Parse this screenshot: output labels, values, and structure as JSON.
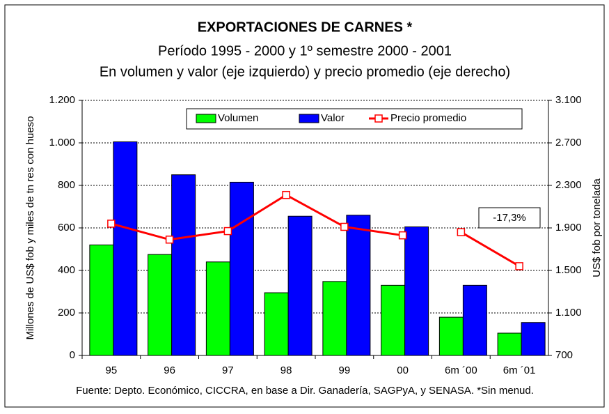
{
  "chart_data": {
    "type": "bar",
    "title": "EXPORTACIONES DE CARNES *",
    "subtitle": "Período 1995 - 2000 y 1º semestre 2000 - 2001",
    "subtitle2": "En volumen y valor (eje izquierdo) y precio promedio (eje derecho)",
    "ylabel": "Millones de US$ fob y miles de tn res con hueso",
    "y2label": "US$ fob por tonelada",
    "source": "Fuente: Depto. Económico, CICCRA,  en base a Dir. Ganadería, SAGPyA, y SENASA.  *Sin menud.",
    "annotation": "-17,3%",
    "categories": [
      "95",
      "96",
      "97",
      "98",
      "99",
      "00",
      "6m ´00",
      "6m ´01"
    ],
    "series": [
      {
        "name": "Volumen",
        "color": "#00ff00",
        "values": [
          520,
          475,
          440,
          295,
          348,
          330,
          180,
          105
        ]
      },
      {
        "name": "Valor",
        "color": "#0000ff",
        "values": [
          1005,
          850,
          815,
          655,
          660,
          605,
          330,
          155
        ]
      },
      {
        "name": "Precio promedio",
        "color": "#ff0000",
        "type": "line",
        "axis": "y2",
        "values": [
          1940,
          1790,
          1870,
          2210,
          1910,
          1830,
          1860,
          1540
        ]
      }
    ],
    "ylim": [
      0,
      1200
    ],
    "yticks": [
      0,
      200,
      400,
      600,
      800,
      {
        "value": 1000,
        "label": "1.000"
      },
      {
        "value": 1200,
        "label": "1.200"
      }
    ],
    "y2lim": [
      700,
      3100
    ],
    "y2ticks": [
      700,
      {
        "value": 1100,
        "label": "1.100"
      },
      {
        "value": 1500,
        "label": "1.500"
      },
      {
        "value": 1900,
        "label": "1.900"
      },
      {
        "value": 2300,
        "label": "2.300"
      },
      {
        "value": 2700,
        "label": "2.700"
      },
      {
        "value": 3100,
        "label": "3.100"
      }
    ],
    "grid": true
  }
}
